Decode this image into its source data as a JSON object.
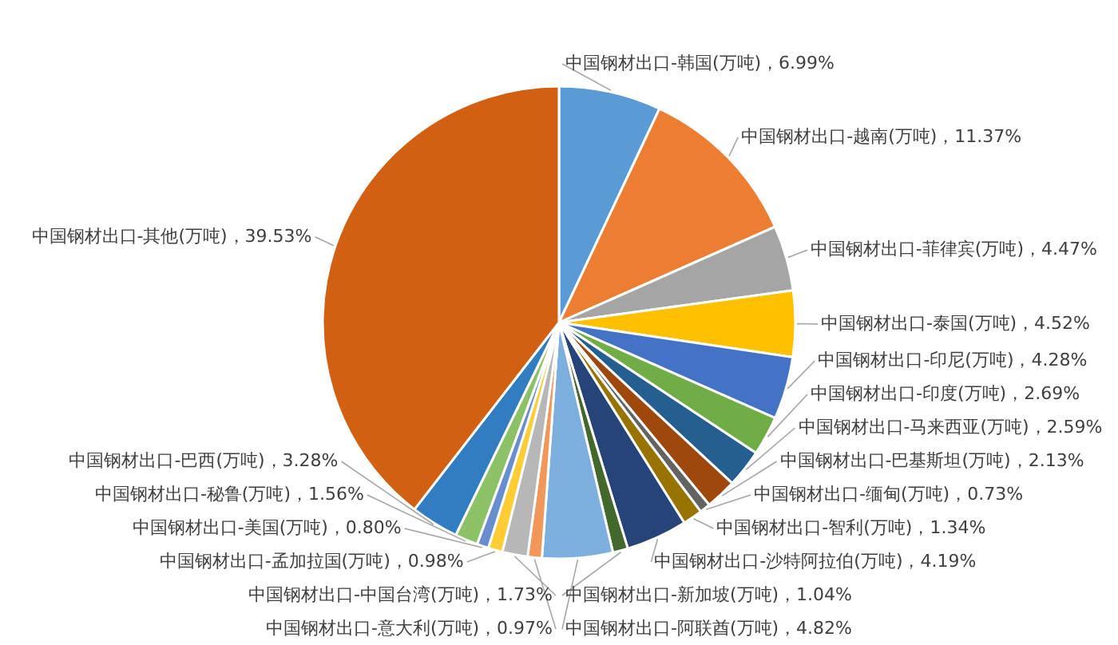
{
  "chart_data": {
    "type": "pie",
    "categories": [
      "中国钢材出口-韩国(万吨)",
      "中国钢材出口-越南(万吨)",
      "中国钢材出口-菲律宾(万吨)",
      "中国钢材出口-泰国(万吨)",
      "中国钢材出口-印尼(万吨)",
      "中国钢材出口-印度(万吨)",
      "中国钢材出口-马来西亚(万吨)",
      "中国钢材出口-巴基斯坦(万吨)",
      "中国钢材出口-缅甸(万吨)",
      "中国钢材出口-智利(万吨)",
      "中国钢材出口-沙特阿拉伯(万吨)",
      "中国钢材出口-新加坡(万吨)",
      "中国钢材出口-阿联酋(万吨)",
      "中国钢材出口-意大利(万吨)",
      "中国钢材出口-中国台湾(万吨)",
      "中国钢材出口-孟加拉国(万吨)",
      "中国钢材出口-美国(万吨)",
      "中国钢材出口-秘鲁(万吨)",
      "中国钢材出口-巴西(万吨)",
      "中国钢材出口-其他(万吨)"
    ],
    "values": [
      6.99,
      11.37,
      4.47,
      4.52,
      4.28,
      2.69,
      2.59,
      2.13,
      0.73,
      1.34,
      4.19,
      1.04,
      4.82,
      0.97,
      1.73,
      0.98,
      0.8,
      1.56,
      3.28,
      39.53
    ],
    "value_labels": [
      "6.99%",
      "11.37%",
      "4.47%",
      "4.52%",
      "4.28%",
      "2.69%",
      "2.59%",
      "2.13%",
      "0.73%",
      "1.34%",
      "4.19%",
      "1.04%",
      "4.82%",
      "0.97%",
      "1.73%",
      "0.98%",
      "0.80%",
      "1.56%",
      "3.28%",
      "39.53%"
    ],
    "colors": [
      "#5b9bd5",
      "#ed7d31",
      "#a5a5a5",
      "#ffc000",
      "#4472c4",
      "#70ad47",
      "#255e91",
      "#9e480e",
      "#636363",
      "#997300",
      "#264478",
      "#43682b",
      "#7cafdd",
      "#f1975a",
      "#b7b7b7",
      "#ffcd33",
      "#698ed0",
      "#8cc168",
      "#327dc2",
      "#d26012"
    ]
  }
}
